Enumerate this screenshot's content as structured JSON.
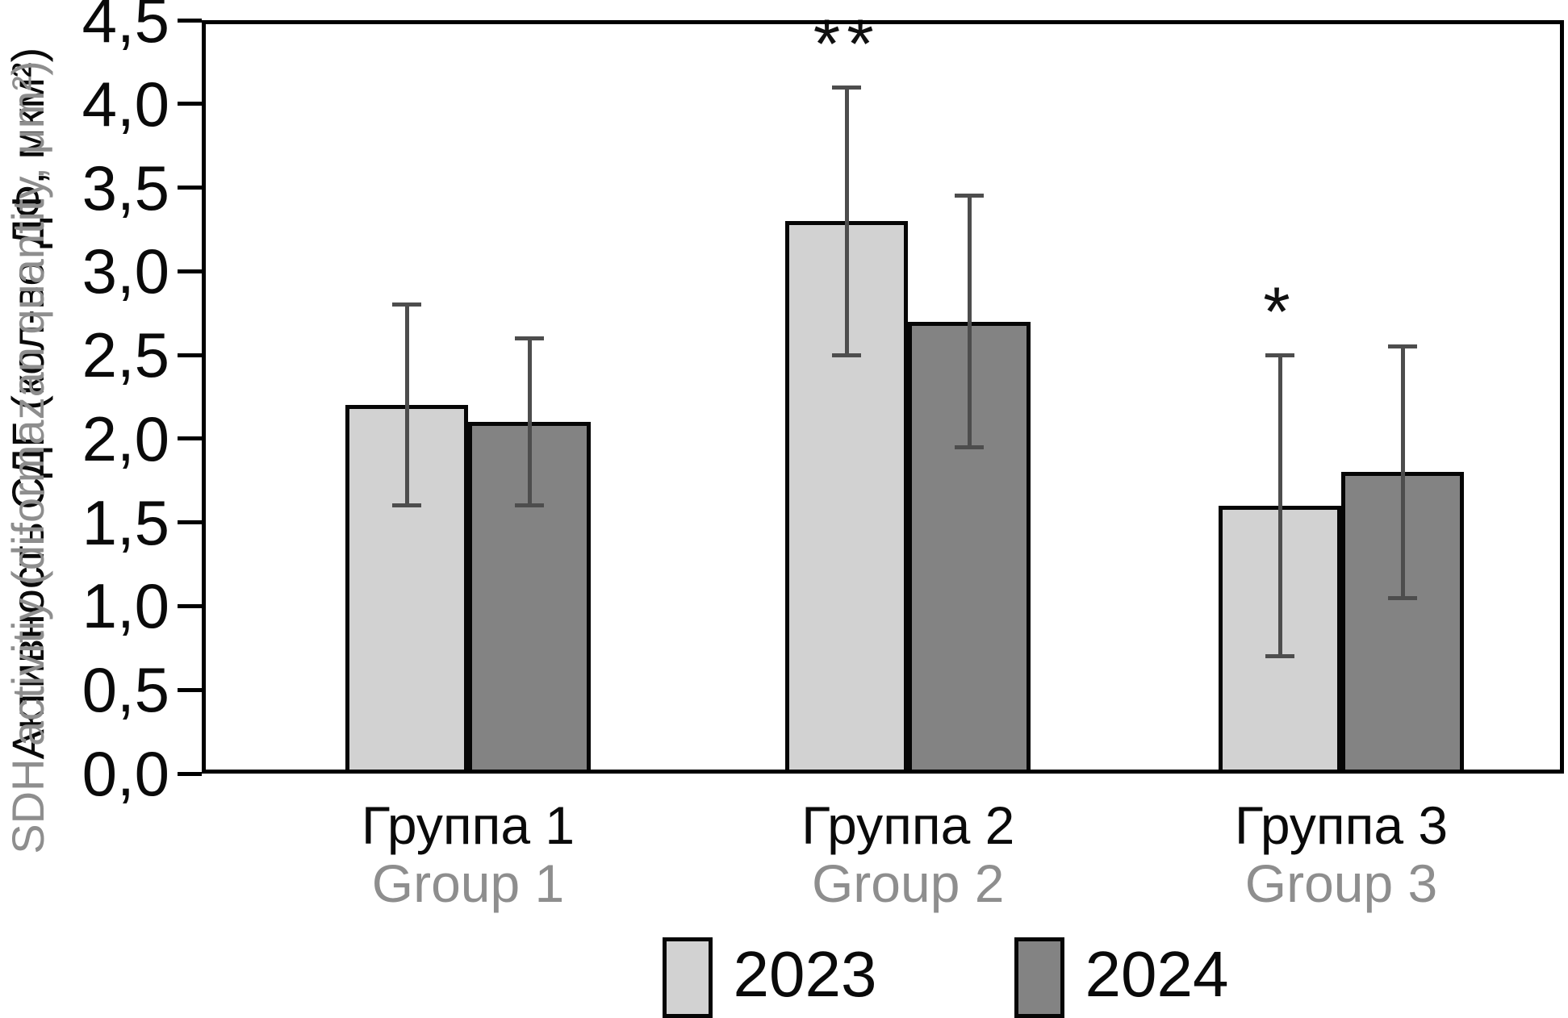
{
  "figure": {
    "background_color": "#ffffff",
    "primary_text_color": "#0a0a0a",
    "secondary_text_color": "#8e8e8e"
  },
  "chart_data": {
    "type": "bar",
    "title": "",
    "ylabel_primary": "Активность СДГ (кол-во ДФ, мкм²)",
    "ylabel_secondary": "SDH activitiy (diformazan quantity, μm²)",
    "xlabel": "",
    "ylim": [
      0,
      4.5
    ],
    "ytick_step": 0.5,
    "ytick_labels": [
      "0,0",
      "0,5",
      "1,0",
      "1,5",
      "2,0",
      "2,5",
      "3,0",
      "3,5",
      "4,0",
      "4,5"
    ],
    "decimal_separator": ",",
    "grid": false,
    "legend_position": "bottom-center",
    "categories": [
      {
        "label_ru": "Группа 1",
        "label_en": "Group 1"
      },
      {
        "label_ru": "Группа 2",
        "label_en": "Group 2"
      },
      {
        "label_ru": "Группа 3",
        "label_en": "Group 3"
      }
    ],
    "series": [
      {
        "name": "2023",
        "color": "#d2d2d2",
        "values": [
          2.2,
          3.3,
          1.6
        ],
        "error_plus": [
          0.6,
          0.8,
          0.9
        ],
        "error_minus": [
          0.6,
          0.8,
          0.9
        ],
        "significance": [
          "",
          "**",
          "*"
        ]
      },
      {
        "name": "2024",
        "color": "#838383",
        "values": [
          2.1,
          2.7,
          1.8
        ],
        "error_plus": [
          0.5,
          0.75,
          0.75
        ],
        "error_minus": [
          0.5,
          0.75,
          0.75
        ],
        "significance": [
          "",
          "",
          ""
        ]
      }
    ],
    "bar_border_color": "#060606",
    "error_bar_color": "#4d4d4d"
  }
}
